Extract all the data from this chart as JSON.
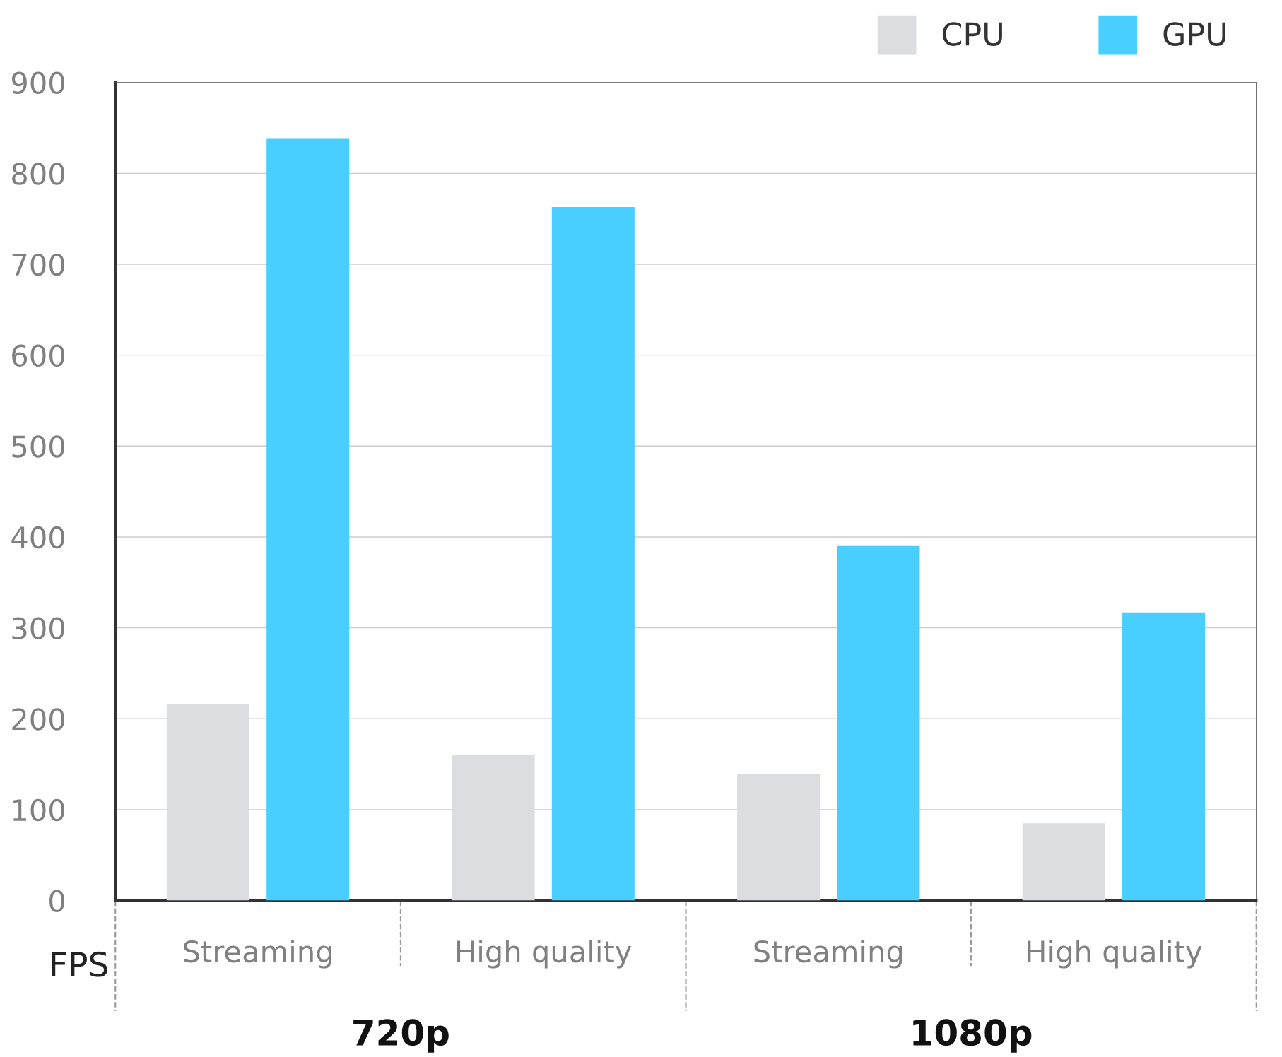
{
  "chart_data": {
    "type": "bar",
    "ylabel": "FPS",
    "categories": [
      "Streaming",
      "High quality",
      "Streaming",
      "High quality"
    ],
    "series": [
      {
        "name": "CPU",
        "color": "#dcdde1",
        "values": [
          216,
          160,
          139,
          85
        ]
      },
      {
        "name": "GPU",
        "color": "#48cfff",
        "values": [
          838,
          763,
          390,
          317
        ]
      }
    ],
    "annotations": [
      "720p",
      "1080p"
    ],
    "ylim": [
      0,
      900
    ],
    "yticks": [
      0,
      100,
      200,
      300,
      400,
      500,
      600,
      700,
      800,
      900
    ],
    "grid": "y",
    "legend": "top right"
  }
}
